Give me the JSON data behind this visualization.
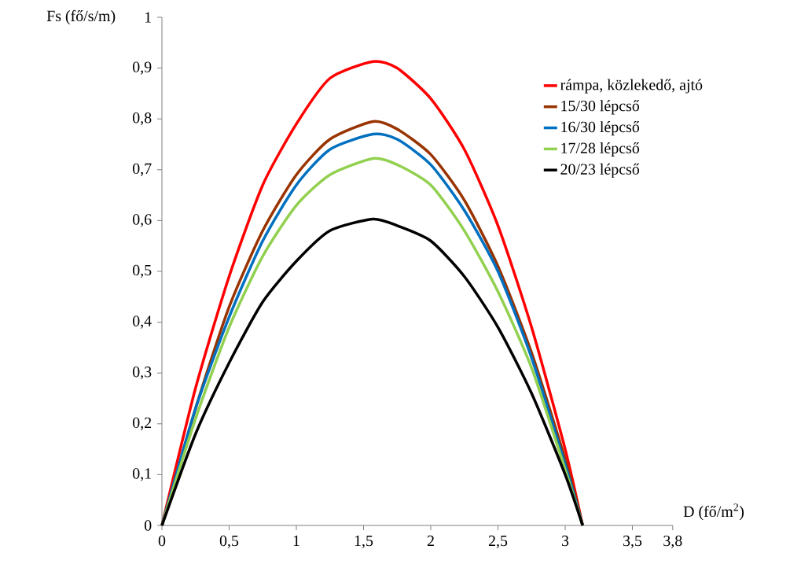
{
  "chart_data": {
    "type": "line",
    "xlabel": "D (fő/m$^{2}$)",
    "ylabel": "Fs (fő/s/m)",
    "xlim": [
      0,
      3.8
    ],
    "ylim": [
      0,
      1
    ],
    "xticks": [
      0,
      {
        "value": 0.5,
        "label": "0,5"
      },
      1,
      {
        "value": 1.5,
        "label": "1,5"
      },
      2,
      {
        "value": 2.5,
        "label": "2,5"
      },
      3,
      {
        "value": 3.5,
        "label": "3,5"
      },
      {
        "value": 3.8,
        "label": "3,8"
      }
    ],
    "yticks": [
      0,
      {
        "value": 0.1,
        "label": "0,1"
      },
      {
        "value": 0.2,
        "label": "0,2"
      },
      {
        "value": 0.3,
        "label": "0,3"
      },
      {
        "value": 0.4,
        "label": "0,4"
      },
      {
        "value": 0.5,
        "label": "0,5"
      },
      {
        "value": 0.6,
        "label": "0,6"
      },
      {
        "value": 0.7,
        "label": "0,7"
      },
      {
        "value": 0.8,
        "label": "0,8"
      },
      {
        "value": 0.9,
        "label": "0,9"
      },
      1
    ],
    "x": [
      0,
      0.25,
      0.5,
      0.75,
      1.0,
      1.25,
      1.57,
      1.75,
      2.0,
      2.25,
      2.5,
      2.75,
      3.0,
      3.13
    ],
    "legend": "top right",
    "grid": false,
    "marker": "none",
    "line_style": "solid",
    "series": [
      {
        "name": "rámpa, közlekedő, ajtó",
        "color": "#ff0000",
        "values": [
          0,
          0.27,
          0.49,
          0.67,
          0.79,
          0.88,
          0.913,
          0.9,
          0.84,
          0.74,
          0.59,
          0.39,
          0.15,
          0
        ]
      },
      {
        "name": "15/30 lépcső",
        "color": "#993300",
        "values": [
          0,
          0.23,
          0.43,
          0.58,
          0.69,
          0.76,
          0.795,
          0.78,
          0.73,
          0.64,
          0.51,
          0.34,
          0.13,
          0
        ]
      },
      {
        "name": "16/30 lépcső",
        "color": "#0070c0",
        "values": [
          0,
          0.23,
          0.41,
          0.56,
          0.67,
          0.74,
          0.77,
          0.76,
          0.71,
          0.62,
          0.5,
          0.33,
          0.12,
          0
        ]
      },
      {
        "name": "17/28 lépcső",
        "color": "#92d050",
        "values": [
          0,
          0.21,
          0.39,
          0.53,
          0.63,
          0.69,
          0.722,
          0.71,
          0.67,
          0.58,
          0.46,
          0.31,
          0.11,
          0
        ]
      },
      {
        "name": "20/23 lépcső",
        "color": "#000000",
        "values": [
          0,
          0.18,
          0.32,
          0.44,
          0.52,
          0.58,
          0.603,
          0.59,
          0.56,
          0.49,
          0.39,
          0.26,
          0.1,
          0
        ]
      }
    ]
  }
}
